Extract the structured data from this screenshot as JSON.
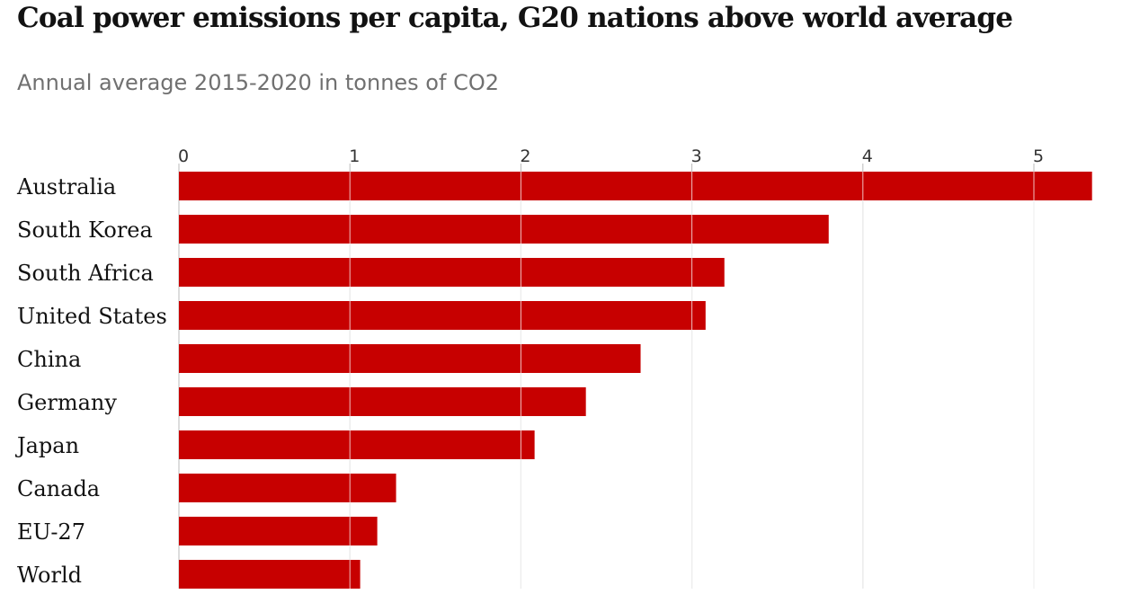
{
  "title": "Coal power emissions per capita, G20 nations above world average",
  "subtitle": "Annual average 2015-2020 in tonnes of CO2",
  "colors": {
    "bar": "#c70000",
    "grid_over_bar": "#ffffff",
    "tick_line": "#bbbbbb"
  },
  "chart_data": {
    "type": "bar",
    "orientation": "horizontal",
    "title": "Coal power emissions per capita, G20 nations above world average",
    "subtitle": "Annual average 2015-2020 in tonnes of CO2",
    "xlabel": "",
    "ylabel": "",
    "xlim": [
      0,
      5.35
    ],
    "xticks": [
      0,
      1,
      2,
      3,
      4,
      5
    ],
    "grid": true,
    "categories": [
      "Australia",
      "South Korea",
      "South Africa",
      "United States",
      "China",
      "Germany",
      "Japan",
      "Canada",
      "EU-27",
      "World"
    ],
    "values": [
      5.34,
      3.8,
      3.19,
      3.08,
      2.7,
      2.38,
      2.08,
      1.27,
      1.16,
      1.06
    ]
  }
}
